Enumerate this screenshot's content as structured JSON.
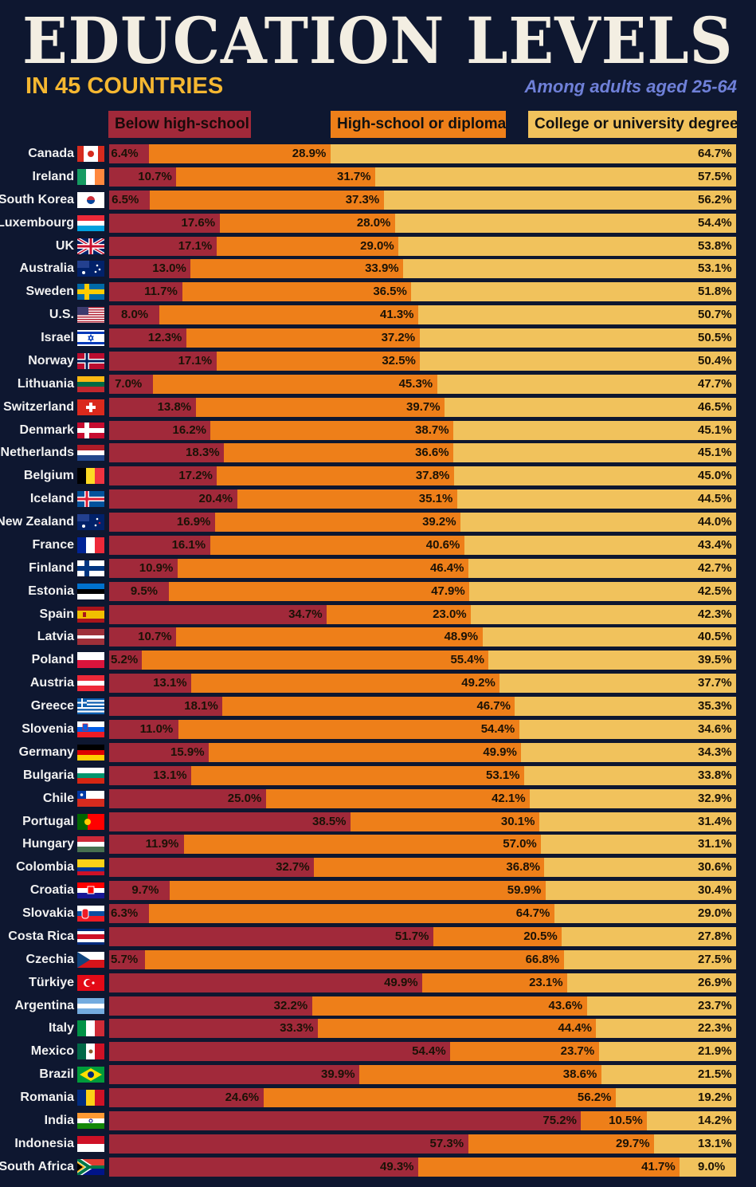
{
  "title": "EDUCATION LEVELS",
  "subtitle": "IN 45 COUNTRIES",
  "note": "Among adults aged 25-64",
  "colors": {
    "below": "#a1293a",
    "high_school": "#ee7f19",
    "college": "#f1c25c",
    "background": "#0e1730"
  },
  "chart_data": {
    "type": "bar",
    "orientation": "horizontal",
    "stacked": true,
    "title": "EDUCATION LEVELS",
    "subtitle": "IN 45 COUNTRIES",
    "legend": [
      "Below high-school",
      "High-school or diploma",
      "College or university degree"
    ],
    "legend_position": "top",
    "unit": "%",
    "categories": [
      "Canada",
      "Ireland",
      "South Korea",
      "Luxembourg",
      "UK",
      "Australia",
      "Sweden",
      "U.S.",
      "Israel",
      "Norway",
      "Lithuania",
      "Switzerland",
      "Denmark",
      "Netherlands",
      "Belgium",
      "Iceland",
      "New Zealand",
      "France",
      "Finland",
      "Estonia",
      "Spain",
      "Latvia",
      "Poland",
      "Austria",
      "Greece",
      "Slovenia",
      "Germany",
      "Bulgaria",
      "Chile",
      "Portugal",
      "Hungary",
      "Colombia",
      "Croatia",
      "Slovakia",
      "Costa Rica",
      "Czechia",
      "Türkiye",
      "Argentina",
      "Italy",
      "Mexico",
      "Brazil",
      "Romania",
      "India",
      "Indonesia",
      "South Africa"
    ],
    "series": [
      {
        "name": "Below high-school",
        "values": [
          6.4,
          10.7,
          6.5,
          17.6,
          17.1,
          13.0,
          11.7,
          8.0,
          12.3,
          17.1,
          7.0,
          13.8,
          16.2,
          18.3,
          17.2,
          20.4,
          16.9,
          16.1,
          10.9,
          9.5,
          34.7,
          10.7,
          5.2,
          13.1,
          18.1,
          11.0,
          15.9,
          13.1,
          25.0,
          38.5,
          11.9,
          32.7,
          9.7,
          6.3,
          51.7,
          5.7,
          49.9,
          32.2,
          33.3,
          54.4,
          39.9,
          24.6,
          75.2,
          57.3,
          49.3
        ]
      },
      {
        "name": "High-school or diploma",
        "values": [
          28.9,
          31.7,
          37.3,
          28.0,
          29.0,
          33.9,
          36.5,
          41.3,
          37.2,
          32.5,
          45.3,
          39.7,
          38.7,
          36.6,
          37.8,
          35.1,
          39.2,
          40.6,
          46.4,
          47.9,
          23.0,
          48.9,
          55.4,
          49.2,
          46.7,
          54.4,
          49.9,
          53.1,
          42.1,
          30.1,
          57.0,
          36.8,
          59.9,
          64.7,
          20.5,
          66.8,
          23.1,
          43.6,
          44.4,
          23.7,
          38.6,
          56.2,
          10.5,
          29.7,
          41.7
        ]
      },
      {
        "name": "College or university degree",
        "values": [
          64.7,
          57.5,
          56.2,
          54.4,
          53.8,
          53.1,
          51.8,
          50.7,
          50.5,
          50.4,
          47.7,
          46.5,
          45.1,
          45.1,
          45.0,
          44.5,
          44.0,
          43.4,
          42.7,
          42.5,
          42.3,
          40.5,
          39.5,
          37.7,
          35.3,
          34.6,
          34.3,
          33.8,
          32.9,
          31.4,
          31.1,
          30.6,
          30.4,
          29.0,
          27.8,
          27.5,
          26.9,
          23.7,
          22.3,
          21.9,
          21.5,
          19.2,
          14.2,
          13.1,
          9.0
        ]
      }
    ]
  }
}
